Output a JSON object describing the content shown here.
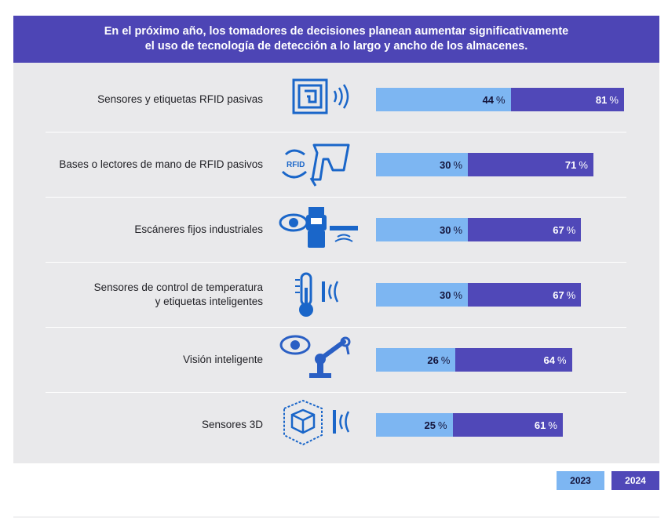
{
  "header": {
    "line1": "En el próximo año, los tomadores de decisiones planean aumentar significativamente",
    "line2": "el uso de tecnología de detección a lo largo y ancho de los almacenes."
  },
  "colors": {
    "header_bg": "#4d45b5",
    "panel_bg": "#e9e9eb",
    "series_2023": "#7db6f2",
    "series_2024": "#5048b8"
  },
  "chart_data": {
    "type": "bar",
    "orientation": "horizontal",
    "stacked_overlay": true,
    "unit": "%",
    "categories": [
      [
        "Sensores y etiquetas RFID pasivas"
      ],
      [
        "Bases o lectores de mano de RFID pasivos"
      ],
      [
        "Escáneres fijos industriales"
      ],
      [
        "Sensores de control de temperatura",
        "y etiquetas inteligentes"
      ],
      [
        "Visión inteligente"
      ],
      [
        "Sensores 3D"
      ]
    ],
    "icons": [
      "rfid-tag-icon",
      "handheld-rfid-reader-icon",
      "fixed-scanner-icon",
      "thermometer-icon",
      "vision-robot-arm-icon",
      "3d-cube-sensor-icon"
    ],
    "series": [
      {
        "name": "2023",
        "values": [
          44,
          30,
          30,
          30,
          26,
          25
        ]
      },
      {
        "name": "2024",
        "values": [
          81,
          71,
          67,
          67,
          64,
          61
        ]
      }
    ],
    "xlim": [
      0,
      100
    ],
    "legend": "bottom-right"
  },
  "legend": {
    "label_2023": "2023",
    "label_2024": "2024"
  }
}
